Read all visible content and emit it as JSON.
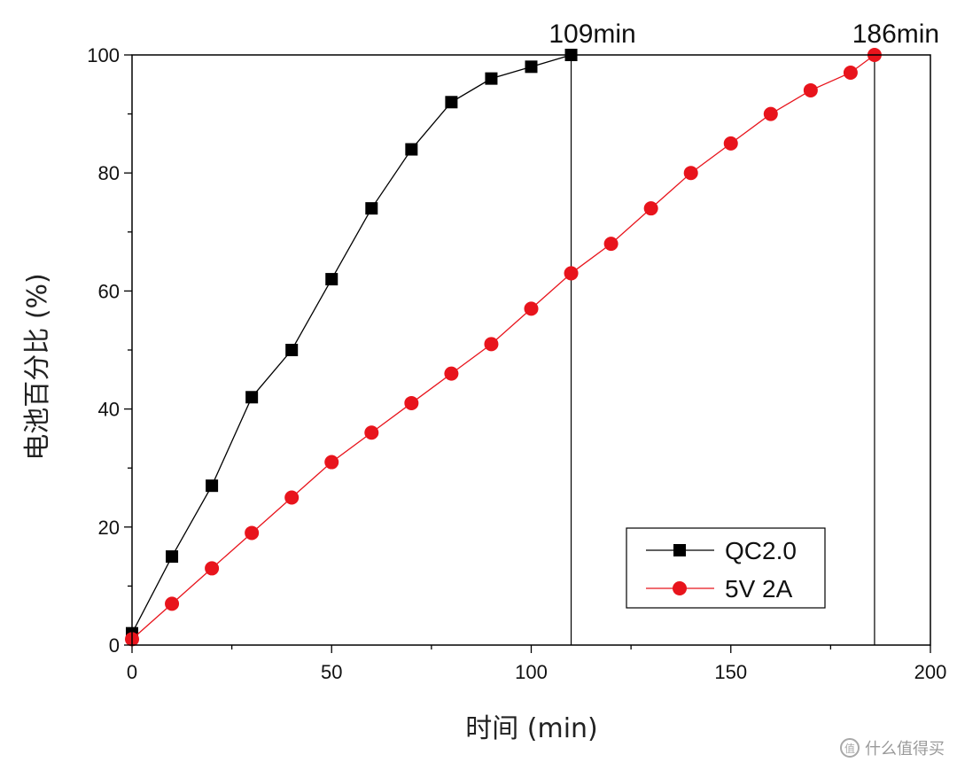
{
  "chart_data": {
    "type": "line",
    "xlabel": "时间 (min)",
    "ylabel": "电池百分比 (%)",
    "xlim": [
      0,
      200
    ],
    "ylim": [
      0,
      100
    ],
    "xticks": [
      "0",
      "50",
      "100",
      "150",
      "200"
    ],
    "yticks": [
      "0",
      "20",
      "40",
      "60",
      "80",
      "100"
    ],
    "grid": false,
    "legend_position": "bottom-right",
    "series": [
      {
        "name": "QC2.0",
        "marker": "square",
        "color": "#000000",
        "x": [
          0,
          10,
          20,
          30,
          40,
          50,
          60,
          70,
          80,
          90,
          100,
          110
        ],
        "y": [
          2,
          15,
          27,
          42,
          50,
          62,
          74,
          84,
          92,
          96,
          98,
          100
        ]
      },
      {
        "name": "5V 2A",
        "marker": "circle",
        "color": "#e8141c",
        "x": [
          0,
          10,
          20,
          30,
          40,
          50,
          60,
          70,
          80,
          90,
          100,
          110,
          120,
          130,
          140,
          150,
          160,
          170,
          180,
          186
        ],
        "y": [
          1,
          7,
          13,
          19,
          25,
          31,
          36,
          41,
          46,
          51,
          57,
          63,
          68,
          74,
          80,
          85,
          90,
          94,
          97,
          100
        ]
      }
    ],
    "annotations": [
      {
        "text": "109min",
        "x": 110
      },
      {
        "text": "186min",
        "x": 186
      }
    ]
  },
  "watermark": {
    "text": "什么值得买",
    "icon": "zhi-icon",
    "icon_text": "值"
  }
}
